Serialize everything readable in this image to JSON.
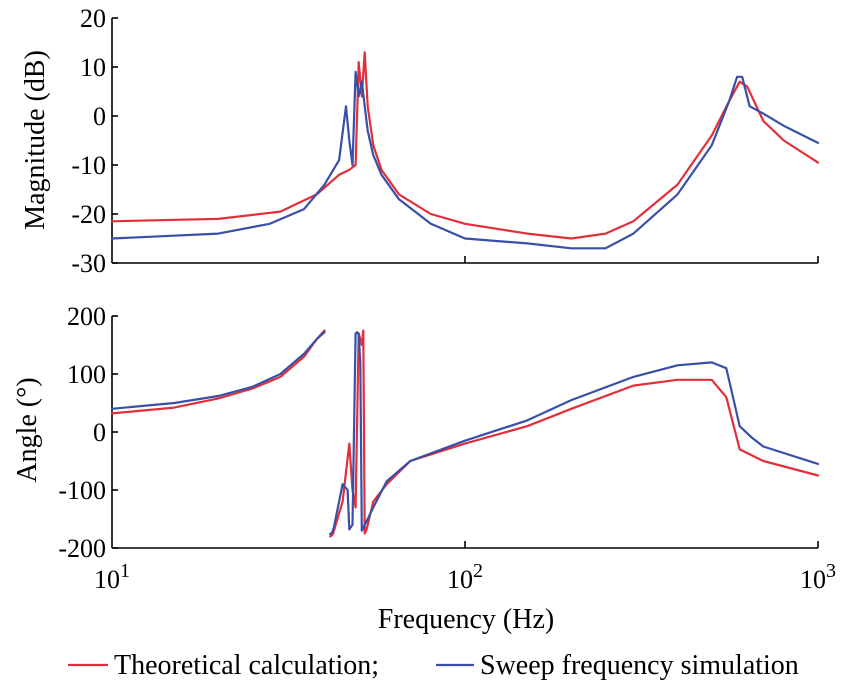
{
  "chart_data": [
    {
      "type": "line",
      "ylabel": "Magnitude (dB)",
      "xscale": "log",
      "xlim": [
        10,
        1000
      ],
      "ylim": [
        -30,
        20
      ],
      "yticks": [
        {
          "value": 20,
          "label": "20"
        },
        {
          "value": 10,
          "label": "10"
        },
        {
          "value": 0,
          "label": "0"
        },
        {
          "value": -10,
          "label": "-10"
        },
        {
          "value": -20,
          "label": "-20"
        },
        {
          "value": -30,
          "label": "-30"
        }
      ],
      "series": [
        {
          "name": "Theoretical calculation",
          "color": "#e0303a",
          "x": [
            10,
            20,
            30,
            38,
            44,
            47,
            49,
            50,
            51,
            52,
            53,
            55,
            58,
            65,
            80,
            100,
            150,
            200,
            250,
            300,
            400,
            500,
            560,
            600,
            630,
            700,
            800,
            1000
          ],
          "y": [
            -21.5,
            -21,
            -19.5,
            -16,
            -12,
            -11,
            -10,
            11,
            4,
            13,
            2,
            -6,
            -11,
            -16,
            -20,
            -22,
            -24,
            -25,
            -24,
            -21.5,
            -14,
            -4,
            3,
            7,
            6,
            -1,
            -5,
            -9.5
          ]
        },
        {
          "name": "Sweep frequency simulation",
          "color": "#3a4fa8",
          "x": [
            10,
            20,
            28,
            35,
            40,
            44,
            46,
            47,
            48,
            49,
            50,
            51,
            52,
            53,
            55,
            58,
            65,
            80,
            100,
            150,
            200,
            250,
            300,
            400,
            500,
            560,
            590,
            610,
            640,
            700,
            800,
            1000
          ],
          "y": [
            -25,
            -24,
            -22,
            -19,
            -14,
            -9,
            2,
            -5,
            -10,
            9,
            4,
            7,
            2,
            -3,
            -8,
            -12,
            -17,
            -22,
            -25,
            -26,
            -27,
            -27,
            -24,
            -16,
            -6,
            3,
            8,
            8,
            2,
            0.5,
            -2,
            -5.5
          ]
        }
      ]
    },
    {
      "type": "line",
      "xlabel": "Frequency (Hz)",
      "ylabel": "Angle (°)",
      "xscale": "log",
      "xlim": [
        10,
        1000
      ],
      "ylim": [
        -200,
        200
      ],
      "xticks": [
        {
          "value": 10,
          "base": "10",
          "exp": "1"
        },
        {
          "value": 100,
          "base": "10",
          "exp": "2"
        },
        {
          "value": 1000,
          "base": "10",
          "exp": "3"
        }
      ],
      "yticks": [
        {
          "value": 200,
          "label": "200"
        },
        {
          "value": 100,
          "label": "100"
        },
        {
          "value": 0,
          "label": "0"
        },
        {
          "value": -100,
          "label": "-100"
        },
        {
          "value": -200,
          "label": "-200"
        }
      ],
      "series": [
        {
          "name": "Theoretical calculation",
          "color": "#e0303a",
          "x": [
            10,
            15,
            20,
            25,
            30,
            35,
            38,
            40,
            41.5,
            42,
            42.3,
            45,
            47,
            48,
            49,
            50,
            51,
            51.5,
            52,
            52.5,
            53,
            55,
            60,
            70,
            100,
            150,
            200,
            300,
            400,
            500,
            550,
            600,
            700,
            1000
          ],
          "y": [
            32,
            42,
            58,
            75,
            95,
            130,
            160,
            175,
            -180,
            -178,
            -175,
            -120,
            -20,
            -100,
            -130,
            170,
            150,
            175,
            -175,
            -170,
            -160,
            -120,
            -90,
            -50,
            -20,
            10,
            40,
            80,
            90,
            90,
            60,
            -30,
            -50,
            -75
          ],
          "break_after": [
            7
          ]
        },
        {
          "name": "Sweep frequency simulation",
          "color": "#3a4fa8",
          "x": [
            10,
            15,
            20,
            25,
            30,
            35,
            38,
            40,
            41.5,
            42,
            42.5,
            45,
            46.5,
            47,
            48,
            49,
            49.5,
            50,
            50.5,
            51,
            52,
            53,
            55,
            60,
            70,
            100,
            150,
            200,
            300,
            400,
            500,
            550,
            600,
            650,
            700,
            1000
          ],
          "y": [
            40,
            50,
            62,
            78,
            100,
            135,
            160,
            172,
            -176,
            -174,
            -165,
            -90,
            -100,
            -168,
            -160,
            170,
            172,
            168,
            120,
            -170,
            -160,
            -150,
            -130,
            -85,
            -50,
            -15,
            20,
            55,
            95,
            115,
            120,
            110,
            10,
            -10,
            -25,
            -55
          ],
          "break_after": [
            7
          ]
        }
      ]
    }
  ],
  "legend": {
    "items": [
      {
        "label": "Theoretical calculation;",
        "color": "#e0303a"
      },
      {
        "label": "Sweep frequency simulation",
        "color": "#3a4fa8"
      }
    ]
  }
}
